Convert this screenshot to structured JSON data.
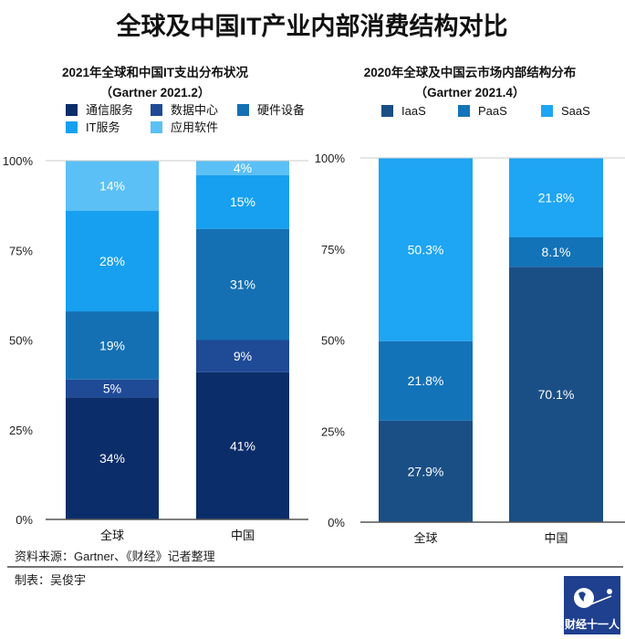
{
  "title": "全球及中国IT产业内部消费结构对比",
  "source": "资料来源：Gartner、《财经》记者整理",
  "author": "制表：吴俊宇",
  "logo": {
    "text": "财经十一人",
    "color": "#1f3f8f"
  },
  "chart_data": [
    {
      "type": "bar",
      "stacked": true,
      "title": "2021年全球和中国IT支出分布状况",
      "subtitle": "（Gartner 2021.2）",
      "categories": [
        "全球",
        "中国"
      ],
      "yticks": [
        "0%",
        "25%",
        "50%",
        "75%",
        "100%"
      ],
      "ylim": [
        0,
        100
      ],
      "legend_position": "top",
      "series": [
        {
          "name": "通信服务",
          "color": "#0b2d69",
          "values": [
            34,
            41
          ],
          "labels": [
            "34%",
            "41%"
          ]
        },
        {
          "name": "数据中心",
          "color": "#1f4a96",
          "values": [
            5,
            9
          ],
          "labels": [
            "5%",
            "9%"
          ]
        },
        {
          "name": "硬件设备",
          "color": "#1470b3",
          "values": [
            19,
            31
          ],
          "labels": [
            "19%",
            "31%"
          ]
        },
        {
          "name": "IT服务",
          "color": "#17a0f0",
          "values": [
            28,
            15
          ],
          "labels": [
            "28%",
            "15%"
          ]
        },
        {
          "name": "应用软件",
          "color": "#5bc0f5",
          "values": [
            14,
            4
          ],
          "labels": [
            "14%",
            "4%"
          ]
        }
      ]
    },
    {
      "type": "bar",
      "stacked": true,
      "title": "2020年全球及中国云市场内部结构分布",
      "subtitle": "（Gartner 2021.4）",
      "categories": [
        "全球",
        "中国"
      ],
      "yticks": [
        "0%",
        "25%",
        "50%",
        "75%",
        "100%"
      ],
      "ylim": [
        0,
        100
      ],
      "legend_position": "top",
      "series": [
        {
          "name": "IaaS",
          "color": "#1a4f86",
          "values": [
            27.9,
            70.1
          ],
          "labels": [
            "27.9%",
            "70.1%"
          ]
        },
        {
          "name": "PaaS",
          "color": "#1273b8",
          "values": [
            21.8,
            8.1
          ],
          "labels": [
            "21.8%",
            "8.1%"
          ]
        },
        {
          "name": "SaaS",
          "color": "#1ea5f3",
          "values": [
            50.3,
            21.8
          ],
          "labels": [
            "50.3%",
            "21.8%"
          ]
        }
      ]
    }
  ]
}
